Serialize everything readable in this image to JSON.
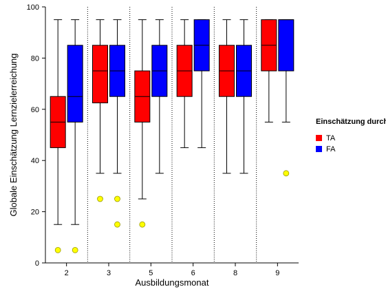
{
  "chart_data": {
    "type": "boxplot",
    "xlabel": "Ausbildungsmonat",
    "ylabel": "Globale Einschätzung Lernzielerreichung",
    "ylim": [
      0,
      100
    ],
    "yticks": [
      0,
      20,
      40,
      60,
      80,
      100
    ],
    "categories": [
      "2",
      "3",
      "5",
      "6",
      "8",
      "9"
    ],
    "legend": {
      "title": "Einschätzung durch",
      "placement": "right"
    },
    "series": [
      {
        "name": "TA",
        "color": "#ff0000",
        "boxes": [
          {
            "whisker_low": 15,
            "q1": 45,
            "median": 55,
            "q3": 65,
            "whisker_high": 95
          },
          {
            "whisker_low": 35,
            "q1": 62.5,
            "median": 75,
            "q3": 85,
            "whisker_high": 95
          },
          {
            "whisker_low": 25,
            "q1": 55,
            "median": 65,
            "q3": 75,
            "whisker_high": 95
          },
          {
            "whisker_low": 45,
            "q1": 65,
            "median": 75,
            "q3": 85,
            "whisker_high": 95
          },
          {
            "whisker_low": 35,
            "q1": 65,
            "median": 75,
            "q3": 85,
            "whisker_high": 95
          },
          {
            "whisker_low": 55,
            "q1": 75,
            "median": 85,
            "q3": 95,
            "whisker_high": 95
          }
        ],
        "outliers": [
          [
            5
          ],
          [
            25
          ],
          [
            15
          ],
          [],
          [],
          []
        ]
      },
      {
        "name": "FA",
        "color": "#0000ff",
        "boxes": [
          {
            "whisker_low": 15,
            "q1": 55,
            "median": 65,
            "q3": 85,
            "whisker_high": 95
          },
          {
            "whisker_low": 35,
            "q1": 65,
            "median": 75,
            "q3": 85,
            "whisker_high": 95
          },
          {
            "whisker_low": 35,
            "q1": 65,
            "median": 75,
            "q3": 85,
            "whisker_high": 95
          },
          {
            "whisker_low": 45,
            "q1": 75,
            "median": 85,
            "q3": 95,
            "whisker_high": 95
          },
          {
            "whisker_low": 35,
            "q1": 65,
            "median": 75,
            "q3": 85,
            "whisker_high": 95
          },
          {
            "whisker_low": 55,
            "q1": 75,
            "median": 95,
            "q3": 95,
            "whisker_high": 95
          }
        ],
        "outliers": [
          [
            5
          ],
          [
            25,
            15
          ],
          [],
          [],
          [],
          [
            35
          ]
        ]
      }
    ],
    "outlier_color": "#ffff00",
    "grid": false,
    "group_separators": "dotted"
  }
}
